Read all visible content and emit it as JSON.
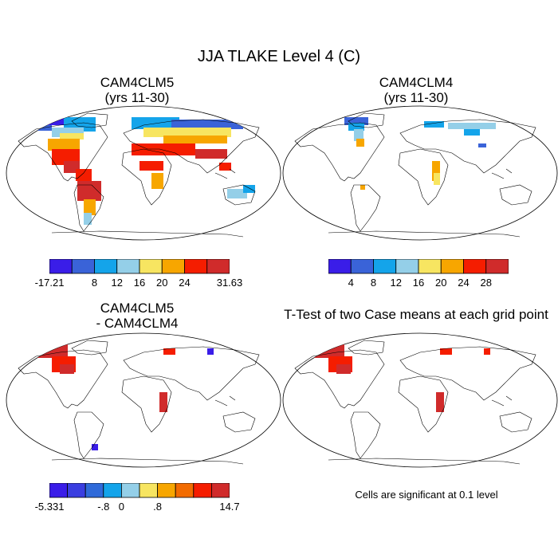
{
  "title": "JJA TLAKE Level 4 (C)",
  "panels": [
    {
      "title_lines": [
        "CAM4CLM5",
        "(yrs 11-30)"
      ]
    },
    {
      "title_lines": [
        "CAM4CLM4",
        "(yrs 11-30)"
      ]
    },
    {
      "title_lines": [
        "CAM4CLM5",
        "- CAM4CLM4"
      ]
    },
    {
      "title_lines": [
        "T-Test of two Case means at each grid point"
      ]
    }
  ],
  "colorbars": [
    {
      "colors": [
        "#3a1de8",
        "#3a63d8",
        "#14a4ea",
        "#94cfe8",
        "#f7e561",
        "#f7a600",
        "#f51d00",
        "#d02b2b"
      ],
      "ticks": [
        "-17.21",
        "8",
        "12",
        "16",
        "20",
        "24",
        "31.63"
      ]
    },
    {
      "colors": [
        "#3a1de8",
        "#3a63d8",
        "#14a4ea",
        "#94cfe8",
        "#f7e561",
        "#f7a600",
        "#f51d00",
        "#d02b2b"
      ],
      "ticks": [
        "4",
        "8",
        "12",
        "16",
        "20",
        "24",
        "28"
      ]
    },
    {
      "colors": [
        "#3a1de8",
        "#3a3ee0",
        "#2f6ad9",
        "#14a4ea",
        "#94cfe8",
        "#f7e561",
        "#f7a600",
        "#f26b00",
        "#f51d00",
        "#d02b2b"
      ],
      "ticks": [
        "-5.331",
        "-.8",
        "0",
        ".8",
        "14.7"
      ]
    }
  ],
  "note": "Cells are significant at 0.1 level"
}
